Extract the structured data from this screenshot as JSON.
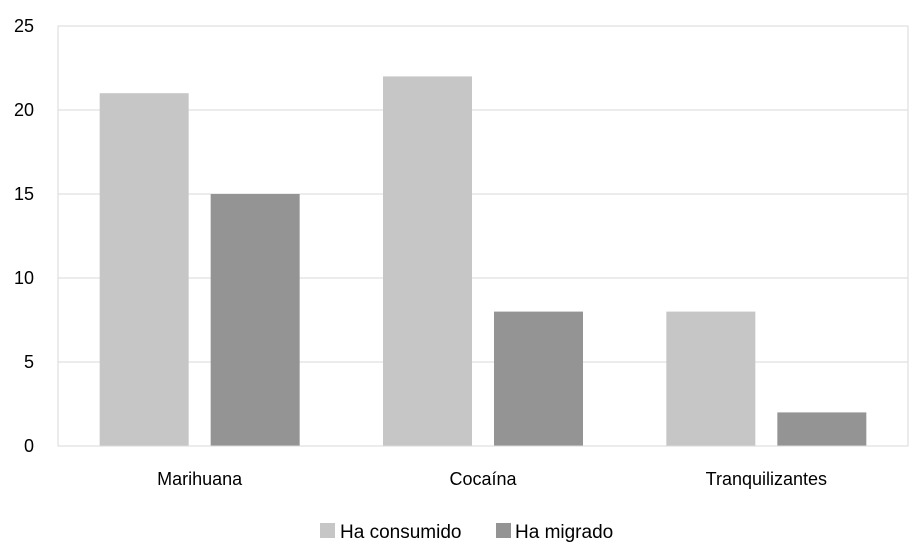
{
  "chart_data": {
    "type": "bar",
    "categories": [
      "Marihuana",
      "Cocaína",
      "Tranquilizantes"
    ],
    "series": [
      {
        "name": "Ha consumido",
        "values": [
          21,
          22,
          8
        ],
        "color": "#c6c6c6"
      },
      {
        "name": "Ha migrado",
        "values": [
          15,
          8,
          2
        ],
        "color": "#949494"
      }
    ],
    "title": "",
    "xlabel": "",
    "ylabel": "",
    "ylim": [
      0,
      25
    ],
    "yticks": [
      "0",
      "5",
      "10",
      "15",
      "20",
      "25"
    ],
    "grid": true,
    "legend_position": "bottom",
    "colors": {
      "axis": "#d9d9d9",
      "grid": "#d9d9d9",
      "text": "#000000"
    }
  }
}
